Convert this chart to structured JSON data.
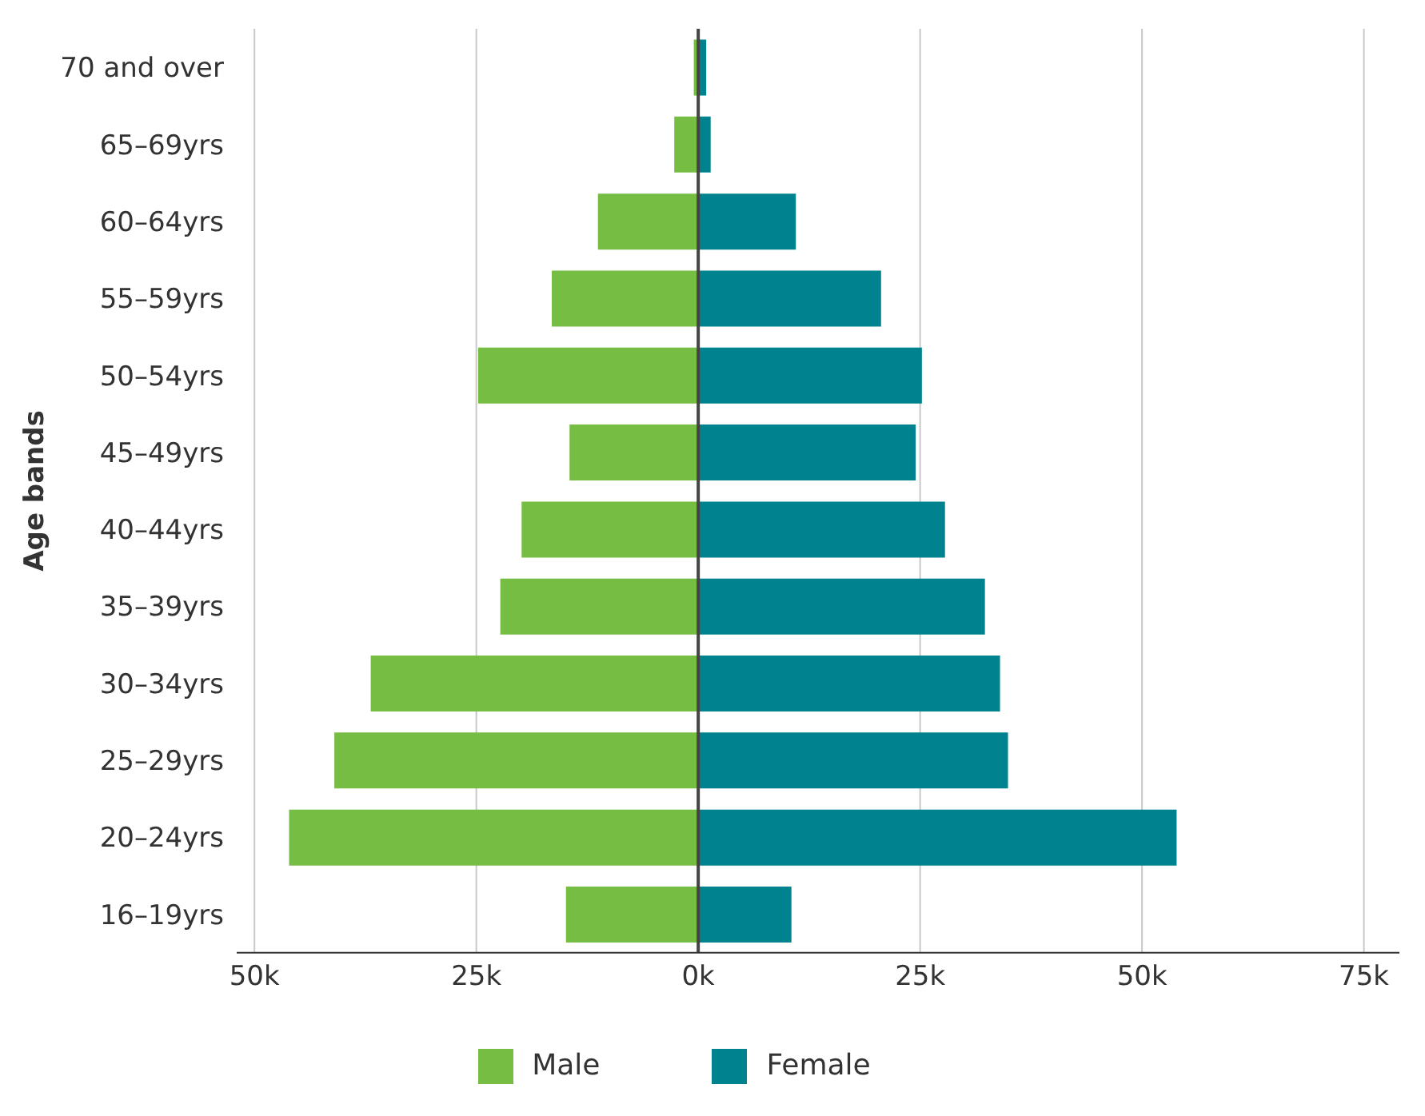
{
  "chart_data": {
    "type": "bar",
    "orientation": "horizontal",
    "ylabel": "Age bands",
    "categories": [
      "70 and over",
      "65–69yrs",
      "60–64yrs",
      "55–59yrs",
      "50–54yrs",
      "45–49yrs",
      "40–44yrs",
      "35–39yrs",
      "30–34yrs",
      "25–29yrs",
      "20–24yrs",
      "16–19yrs"
    ],
    "series": [
      {
        "name": "Male",
        "color": "#76bd43",
        "values": [
          -500,
          -2700,
          -11300,
          -16500,
          -24800,
          -14500,
          -19900,
          -22300,
          -36900,
          -41000,
          -46100,
          -14900
        ]
      },
      {
        "name": "Female",
        "color": "#00838f",
        "values": [
          900,
          1400,
          11000,
          20600,
          25200,
          24500,
          27800,
          32300,
          34000,
          34900,
          53900,
          10500
        ]
      }
    ],
    "xlim": [
      -52000,
      79000
    ],
    "xticks": [
      {
        "value": -50000,
        "label": "50k"
      },
      {
        "value": -25000,
        "label": "25k"
      },
      {
        "value": 0,
        "label": "0k"
      },
      {
        "value": 25000,
        "label": "25k"
      },
      {
        "value": 50000,
        "label": "50k"
      },
      {
        "value": 75000,
        "label": "75k"
      }
    ],
    "ref_lines": [
      {
        "axis": "x",
        "value": 0,
        "color": "#444444"
      }
    ],
    "grid": "x",
    "legend": "bottom",
    "stacked": true
  }
}
